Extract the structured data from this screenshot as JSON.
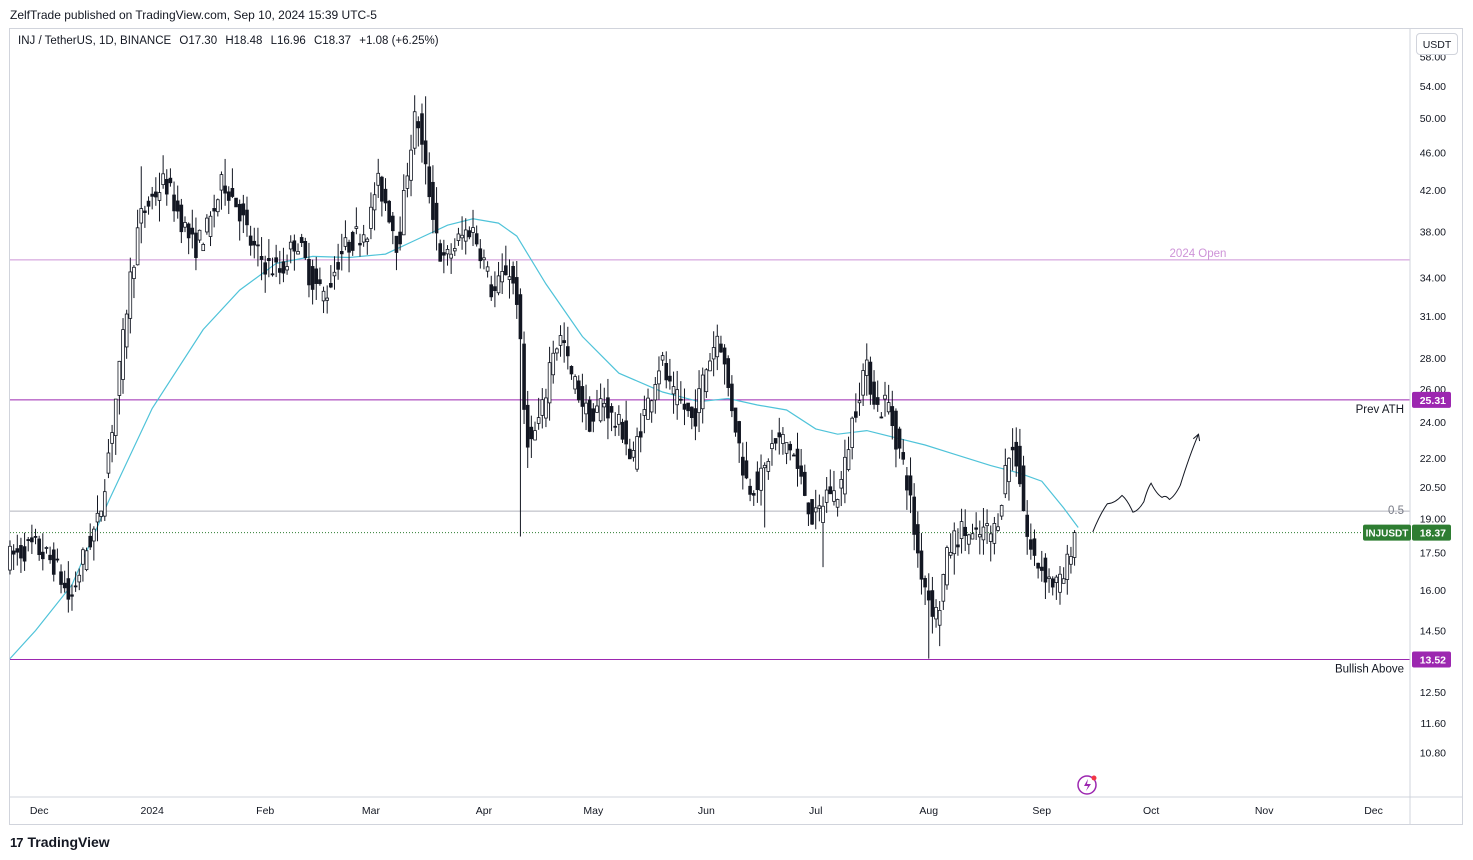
{
  "header": {
    "publisher": "ZelfTrade published on TradingView.com, Sep 10, 2024 15:39 UTC-5"
  },
  "legend": {
    "symbol": "INJ / TetherUS, 1D, BINANCE",
    "open": "O17.30",
    "high": "H18.48",
    "low": "L16.96",
    "close": "C18.37",
    "change": "+1.08 (+6.25%)"
  },
  "currency_button": "USDT",
  "footer": {
    "brand": "TradingView",
    "brand_mark": "17"
  },
  "colors": {
    "candle": "#131722",
    "ma": "#4fc3d9",
    "level_line": "#9c27b0",
    "open_line": "#ce93d8",
    "fib_line": "#b2b5be",
    "price_badge": "#2e7d32",
    "level_badge": "#9c27b0"
  },
  "chart_data": {
    "type": "candlestick",
    "scale": "log",
    "ylim": [
      9.7,
      62
    ],
    "y_ticks": [
      "58.00",
      "54.00",
      "50.00",
      "46.00",
      "42.00",
      "38.00",
      "34.00",
      "31.00",
      "28.00",
      "26.00",
      "24.00",
      "22.00",
      "20.50",
      "19.00",
      "17.50",
      "16.00",
      "14.50",
      "12.50",
      "11.60",
      "10.80"
    ],
    "x_ticks": [
      "Dec",
      "2024",
      "Feb",
      "Mar",
      "Apr",
      "May",
      "Jun",
      "Jul",
      "Aug",
      "Sep",
      "Oct",
      "Nov",
      "Dec"
    ],
    "x_tick_days": [
      1,
      32,
      63,
      92,
      123,
      153,
      184,
      214,
      245,
      276,
      306,
      337,
      367
    ],
    "x_range_days": [
      -7,
      377
    ],
    "last_price": {
      "label": "INJUSDT",
      "value": 18.37
    },
    "levels": [
      {
        "name": "2024 Open",
        "value": 35.5,
        "style": "open"
      },
      {
        "name": "Prev ATH",
        "value": 25.31,
        "style": "level",
        "badge": "25.31"
      },
      {
        "name": "0.5",
        "value": 19.35,
        "style": "fib"
      },
      {
        "name": "Bullish Above",
        "value": 13.52,
        "style": "level",
        "badge": "13.52"
      }
    ],
    "anchors": [
      [
        -7,
        17.3
      ],
      [
        0,
        17.8
      ],
      [
        6,
        17.0
      ],
      [
        10,
        15.5
      ],
      [
        14,
        17.5
      ],
      [
        18,
        19.0
      ],
      [
        21,
        23.0
      ],
      [
        24,
        28.0
      ],
      [
        26,
        33.0
      ],
      [
        29,
        39.0
      ],
      [
        32,
        41.0
      ],
      [
        36,
        43.0
      ],
      [
        40,
        39.5
      ],
      [
        44,
        36.5
      ],
      [
        48,
        38.5
      ],
      [
        52,
        43.0
      ],
      [
        56,
        40.5
      ],
      [
        60,
        36.5
      ],
      [
        64,
        35.0
      ],
      [
        68,
        34.5
      ],
      [
        72,
        37.5
      ],
      [
        76,
        34.0
      ],
      [
        80,
        32.5
      ],
      [
        84,
        36.0
      ],
      [
        88,
        37.5
      ],
      [
        92,
        38.5
      ],
      [
        94,
        43.0
      ],
      [
        97,
        40.5
      ],
      [
        100,
        36.5
      ],
      [
        103,
        46.0
      ],
      [
        105,
        51.0
      ],
      [
        107,
        45.0
      ],
      [
        110,
        39.0
      ],
      [
        112,
        35.0
      ],
      [
        116,
        37.0
      ],
      [
        120,
        38.5
      ],
      [
        123,
        36.0
      ],
      [
        126,
        32.5
      ],
      [
        130,
        35.0
      ],
      [
        133,
        32.0
      ],
      [
        134,
        25.5
      ],
      [
        136,
        22.5
      ],
      [
        140,
        25.0
      ],
      [
        142,
        28.5
      ],
      [
        145,
        29.5
      ],
      [
        147,
        27.0
      ],
      [
        150,
        25.5
      ],
      [
        153,
        23.8
      ],
      [
        156,
        25.5
      ],
      [
        159,
        24.0
      ],
      [
        162,
        23.5
      ],
      [
        164,
        21.5
      ],
      [
        166,
        23.5
      ],
      [
        169,
        25.5
      ],
      [
        172,
        28.0
      ],
      [
        175,
        25.5
      ],
      [
        178,
        25.0
      ],
      [
        181,
        24.0
      ],
      [
        184,
        27.0
      ],
      [
        186,
        28.5
      ],
      [
        188,
        30.0
      ],
      [
        190,
        26.5
      ],
      [
        192,
        24.5
      ],
      [
        194,
        22.0
      ],
      [
        196,
        20.5
      ],
      [
        200,
        21.0
      ],
      [
        202,
        22.5
      ],
      [
        205,
        23.0
      ],
      [
        208,
        22.5
      ],
      [
        210,
        21.0
      ],
      [
        212,
        20.0
      ],
      [
        214,
        18.8
      ],
      [
        216,
        19.5
      ],
      [
        218,
        20.5
      ],
      [
        220,
        20.0
      ],
      [
        222,
        21.0
      ],
      [
        224,
        23.5
      ],
      [
        226,
        25.5
      ],
      [
        228,
        27.5
      ],
      [
        230,
        26.0
      ],
      [
        232,
        24.5
      ],
      [
        234,
        25.5
      ],
      [
        236,
        23.5
      ],
      [
        238,
        22.0
      ],
      [
        240,
        20.5
      ],
      [
        241,
        19.0
      ],
      [
        243,
        17.0
      ],
      [
        246,
        15.5
      ],
      [
        248,
        15.0
      ],
      [
        250,
        17.0
      ],
      [
        252,
        18.0
      ],
      [
        255,
        18.5
      ],
      [
        258,
        18.0
      ],
      [
        261,
        18.5
      ],
      [
        263,
        18.2
      ],
      [
        265,
        19.5
      ],
      [
        267,
        22.0
      ],
      [
        269,
        22.5
      ],
      [
        271,
        20.5
      ],
      [
        272,
        18.5
      ],
      [
        274,
        17.3
      ],
      [
        277,
        16.8
      ],
      [
        279,
        16.3
      ],
      [
        282,
        16.2
      ],
      [
        284,
        17.3
      ],
      [
        285,
        18.37
      ]
    ],
    "series": [
      {
        "name": "",
        "type": "moving-average",
        "values": [
          [
            -7,
            13.55
          ],
          [
            0,
            14.5
          ],
          [
            10,
            16.2
          ],
          [
            20,
            19.8
          ],
          [
            32,
            24.8
          ],
          [
            46,
            30.0
          ],
          [
            56,
            33.0
          ],
          [
            66,
            35.2
          ],
          [
            76,
            35.8
          ],
          [
            86,
            35.7
          ],
          [
            96,
            36.0
          ],
          [
            104,
            37.2
          ],
          [
            113,
            38.6
          ],
          [
            120,
            39.2
          ],
          [
            127,
            38.8
          ],
          [
            132,
            37.6
          ],
          [
            140,
            33.5
          ],
          [
            150,
            29.5
          ],
          [
            160,
            27.0
          ],
          [
            172,
            25.8
          ],
          [
            182,
            25.2
          ],
          [
            190,
            25.4
          ],
          [
            198,
            25.0
          ],
          [
            206,
            24.7
          ],
          [
            214,
            23.6
          ],
          [
            220,
            23.3
          ],
          [
            228,
            23.5
          ],
          [
            236,
            23.1
          ],
          [
            244,
            22.7
          ],
          [
            252,
            22.2
          ],
          [
            262,
            21.6
          ],
          [
            270,
            21.2
          ],
          [
            276,
            20.8
          ],
          [
            282,
            19.5
          ],
          [
            286,
            18.6
          ]
        ]
      }
    ],
    "projection": [
      [
        290,
        18.4
      ],
      [
        294,
        19.7
      ],
      [
        298,
        20.1
      ],
      [
        301,
        19.3
      ],
      [
        304,
        19.8
      ],
      [
        306,
        20.7
      ],
      [
        309,
        20.0
      ],
      [
        311,
        19.9
      ],
      [
        314,
        20.6
      ],
      [
        319,
        23.3
      ]
    ]
  }
}
